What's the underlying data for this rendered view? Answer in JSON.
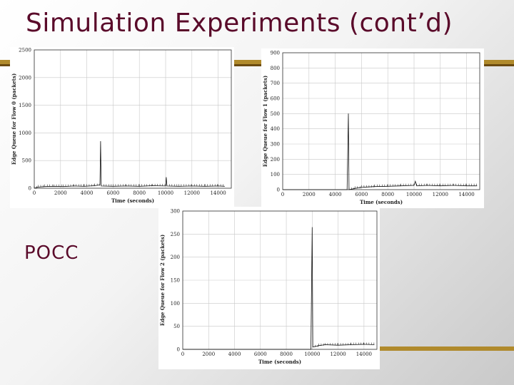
{
  "slide": {
    "title": "Simulation Experiments (cont’d)",
    "label": "POCC",
    "accent_color": "#b08a2c",
    "title_color": "#5a0a2a"
  },
  "chart_data": [
    {
      "type": "line",
      "xlabel": "Time (seconds)",
      "ylabel": "Edge Queue for Flow 0 (packets)",
      "xticks": [
        0,
        2000,
        4000,
        6000,
        8000,
        10000,
        12000,
        14000
      ],
      "yticks": [
        0,
        500,
        1000,
        1500,
        2000,
        2500
      ],
      "xlim": [
        0,
        15000
      ],
      "ylim": [
        0,
        2500
      ],
      "grid": true,
      "series": [
        {
          "points": [
            [
              0,
              0
            ],
            [
              300,
              20
            ],
            [
              800,
              30
            ],
            [
              1500,
              35
            ],
            [
              2200,
              30
            ],
            [
              3000,
              40
            ],
            [
              3800,
              35
            ],
            [
              4600,
              45
            ],
            [
              5000,
              60
            ],
            [
              5050,
              850
            ],
            [
              5100,
              40
            ],
            [
              6000,
              35
            ],
            [
              7000,
              40
            ],
            [
              8000,
              35
            ],
            [
              9000,
              45
            ],
            [
              10000,
              40
            ],
            [
              10050,
              200
            ],
            [
              10100,
              40
            ],
            [
              11000,
              35
            ],
            [
              12000,
              40
            ],
            [
              13000,
              35
            ],
            [
              14000,
              40
            ],
            [
              14500,
              35
            ]
          ]
        }
      ]
    },
    {
      "type": "line",
      "xlabel": "Time (seconds)",
      "ylabel": "Edge Queue for Flow 1 (packets)",
      "xticks": [
        0,
        2000,
        4000,
        6000,
        8000,
        10000,
        12000,
        14000
      ],
      "yticks": [
        0,
        100,
        200,
        300,
        400,
        500,
        600,
        700,
        800,
        900
      ],
      "xlim": [
        0,
        15000
      ],
      "ylim": [
        0,
        900
      ],
      "grid": true,
      "series": [
        {
          "points": [
            [
              0,
              0
            ],
            [
              4900,
              0
            ],
            [
              5000,
              500
            ],
            [
              5050,
              0
            ],
            [
              5500,
              8
            ],
            [
              6000,
              15
            ],
            [
              7000,
              20
            ],
            [
              8000,
              22
            ],
            [
              9000,
              25
            ],
            [
              10000,
              28
            ],
            [
              10100,
              55
            ],
            [
              10200,
              25
            ],
            [
              11000,
              28
            ],
            [
              12000,
              25
            ],
            [
              13000,
              28
            ],
            [
              14000,
              25
            ],
            [
              14800,
              25
            ]
          ]
        }
      ]
    },
    {
      "type": "line",
      "xlabel": "Time (seconds)",
      "ylabel": "Edge Queue for Flow 2 (packets)",
      "xticks": [
        0,
        2000,
        4000,
        6000,
        8000,
        10000,
        12000,
        14000
      ],
      "yticks": [
        0,
        50,
        100,
        150,
        200,
        250,
        300
      ],
      "xlim": [
        0,
        15000
      ],
      "ylim": [
        0,
        300
      ],
      "grid": true,
      "series": [
        {
          "points": [
            [
              0,
              0
            ],
            [
              9900,
              0
            ],
            [
              10000,
              265
            ],
            [
              10050,
              5
            ],
            [
              10500,
              8
            ],
            [
              11000,
              10
            ],
            [
              12000,
              9
            ],
            [
              13000,
              10
            ],
            [
              14000,
              11
            ],
            [
              14800,
              10
            ]
          ]
        }
      ]
    }
  ]
}
